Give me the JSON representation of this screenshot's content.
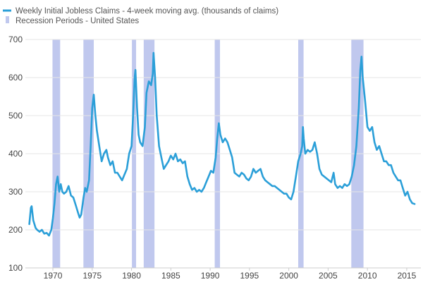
{
  "chart_data": {
    "type": "line",
    "title": "",
    "xlabel": "",
    "ylabel": "",
    "xlim": [
      1966.5,
      2016.8
    ],
    "ylim": [
      100,
      700
    ],
    "y_ticks": [
      100,
      200,
      300,
      400,
      500,
      600,
      700
    ],
    "x_ticks": [
      1970,
      1975,
      1980,
      1985,
      1990,
      1995,
      2000,
      2005,
      2010,
      2015
    ],
    "grid": "horizontal",
    "legend_position": "top-left",
    "series": [
      {
        "name": "Weekly Initial Jobless Claims - 4-week moving avg. (thousands of claims)",
        "color": "#2b9fd8",
        "points": [
          [
            1967.0,
            215
          ],
          [
            1967.2,
            258
          ],
          [
            1967.3,
            262
          ],
          [
            1967.5,
            225
          ],
          [
            1967.8,
            205
          ],
          [
            1968.0,
            200
          ],
          [
            1968.3,
            195
          ],
          [
            1968.6,
            200
          ],
          [
            1968.9,
            190
          ],
          [
            1969.2,
            192
          ],
          [
            1969.5,
            185
          ],
          [
            1969.8,
            200
          ],
          [
            1970.0,
            230
          ],
          [
            1970.2,
            270
          ],
          [
            1970.4,
            320
          ],
          [
            1970.6,
            340
          ],
          [
            1970.8,
            300
          ],
          [
            1971.0,
            320
          ],
          [
            1971.2,
            300
          ],
          [
            1971.4,
            295
          ],
          [
            1971.7,
            300
          ],
          [
            1972.0,
            315
          ],
          [
            1972.3,
            290
          ],
          [
            1972.6,
            285
          ],
          [
            1972.9,
            265
          ],
          [
            1973.2,
            245
          ],
          [
            1973.4,
            232
          ],
          [
            1973.6,
            240
          ],
          [
            1973.9,
            285
          ],
          [
            1974.1,
            310
          ],
          [
            1974.3,
            300
          ],
          [
            1974.6,
            330
          ],
          [
            1974.8,
            420
          ],
          [
            1975.0,
            520
          ],
          [
            1975.2,
            555
          ],
          [
            1975.4,
            500
          ],
          [
            1975.6,
            460
          ],
          [
            1975.9,
            420
          ],
          [
            1976.2,
            380
          ],
          [
            1976.5,
            400
          ],
          [
            1976.8,
            410
          ],
          [
            1977.0,
            390
          ],
          [
            1977.3,
            370
          ],
          [
            1977.6,
            380
          ],
          [
            1977.9,
            350
          ],
          [
            1978.2,
            350
          ],
          [
            1978.5,
            340
          ],
          [
            1978.8,
            330
          ],
          [
            1979.1,
            345
          ],
          [
            1979.4,
            360
          ],
          [
            1979.7,
            400
          ],
          [
            1980.0,
            420
          ],
          [
            1980.2,
            500
          ],
          [
            1980.4,
            600
          ],
          [
            1980.5,
            620
          ],
          [
            1980.7,
            520
          ],
          [
            1980.9,
            450
          ],
          [
            1981.1,
            430
          ],
          [
            1981.4,
            420
          ],
          [
            1981.7,
            470
          ],
          [
            1981.9,
            560
          ],
          [
            1982.2,
            590
          ],
          [
            1982.5,
            580
          ],
          [
            1982.7,
            610
          ],
          [
            1982.8,
            665
          ],
          [
            1983.0,
            600
          ],
          [
            1983.2,
            500
          ],
          [
            1983.5,
            420
          ],
          [
            1983.8,
            390
          ],
          [
            1984.1,
            360
          ],
          [
            1984.4,
            370
          ],
          [
            1984.7,
            380
          ],
          [
            1985.0,
            395
          ],
          [
            1985.3,
            385
          ],
          [
            1985.6,
            400
          ],
          [
            1985.9,
            380
          ],
          [
            1986.2,
            385
          ],
          [
            1986.5,
            375
          ],
          [
            1986.8,
            380
          ],
          [
            1987.1,
            340
          ],
          [
            1987.4,
            320
          ],
          [
            1987.7,
            305
          ],
          [
            1988.0,
            310
          ],
          [
            1988.3,
            300
          ],
          [
            1988.6,
            305
          ],
          [
            1988.9,
            300
          ],
          [
            1989.2,
            310
          ],
          [
            1989.5,
            325
          ],
          [
            1989.8,
            340
          ],
          [
            1990.1,
            355
          ],
          [
            1990.4,
            350
          ],
          [
            1990.7,
            390
          ],
          [
            1990.9,
            440
          ],
          [
            1991.1,
            480
          ],
          [
            1991.3,
            450
          ],
          [
            1991.6,
            430
          ],
          [
            1991.9,
            440
          ],
          [
            1992.2,
            430
          ],
          [
            1992.5,
            410
          ],
          [
            1992.8,
            390
          ],
          [
            1993.1,
            350
          ],
          [
            1993.4,
            345
          ],
          [
            1993.7,
            340
          ],
          [
            1994.0,
            350
          ],
          [
            1994.3,
            345
          ],
          [
            1994.6,
            335
          ],
          [
            1994.9,
            330
          ],
          [
            1995.2,
            340
          ],
          [
            1995.5,
            360
          ],
          [
            1995.8,
            350
          ],
          [
            1996.1,
            355
          ],
          [
            1996.4,
            360
          ],
          [
            1996.7,
            340
          ],
          [
            1997.0,
            330
          ],
          [
            1997.3,
            325
          ],
          [
            1997.6,
            320
          ],
          [
            1997.9,
            315
          ],
          [
            1998.2,
            315
          ],
          [
            1998.5,
            310
          ],
          [
            1998.8,
            305
          ],
          [
            1999.1,
            300
          ],
          [
            1999.4,
            295
          ],
          [
            1999.7,
            295
          ],
          [
            2000.0,
            285
          ],
          [
            2000.3,
            280
          ],
          [
            2000.6,
            300
          ],
          [
            2000.9,
            340
          ],
          [
            2001.2,
            380
          ],
          [
            2001.5,
            400
          ],
          [
            2001.7,
            420
          ],
          [
            2001.8,
            470
          ],
          [
            2001.9,
            440
          ],
          [
            2002.1,
            400
          ],
          [
            2002.4,
            410
          ],
          [
            2002.7,
            405
          ],
          [
            2003.0,
            410
          ],
          [
            2003.3,
            430
          ],
          [
            2003.6,
            400
          ],
          [
            2003.9,
            360
          ],
          [
            2004.2,
            345
          ],
          [
            2004.5,
            340
          ],
          [
            2004.8,
            335
          ],
          [
            2005.1,
            330
          ],
          [
            2005.4,
            325
          ],
          [
            2005.7,
            350
          ],
          [
            2005.9,
            320
          ],
          [
            2006.2,
            310
          ],
          [
            2006.5,
            315
          ],
          [
            2006.8,
            310
          ],
          [
            2007.1,
            320
          ],
          [
            2007.4,
            315
          ],
          [
            2007.7,
            320
          ],
          [
            2008.0,
            340
          ],
          [
            2008.3,
            370
          ],
          [
            2008.6,
            420
          ],
          [
            2008.9,
            520
          ],
          [
            2009.1,
            620
          ],
          [
            2009.25,
            655
          ],
          [
            2009.4,
            600
          ],
          [
            2009.7,
            540
          ],
          [
            2010.0,
            470
          ],
          [
            2010.3,
            460
          ],
          [
            2010.6,
            470
          ],
          [
            2010.9,
            430
          ],
          [
            2011.2,
            410
          ],
          [
            2011.5,
            420
          ],
          [
            2011.8,
            400
          ],
          [
            2012.1,
            380
          ],
          [
            2012.4,
            380
          ],
          [
            2012.7,
            370
          ],
          [
            2013.0,
            370
          ],
          [
            2013.3,
            350
          ],
          [
            2013.6,
            340
          ],
          [
            2013.9,
            330
          ],
          [
            2014.2,
            330
          ],
          [
            2014.5,
            310
          ],
          [
            2014.8,
            290
          ],
          [
            2015.1,
            300
          ],
          [
            2015.4,
            280
          ],
          [
            2015.7,
            270
          ],
          [
            2016.0,
            268
          ]
        ]
      }
    ],
    "recessions": {
      "name": "Recession Periods - United States",
      "color": "#c0c8ee",
      "periods": [
        [
          1969.95,
          1970.92
        ],
        [
          1973.88,
          1975.2
        ],
        [
          1980.05,
          1980.58
        ],
        [
          1981.55,
          1982.92
        ],
        [
          1990.58,
          1991.25
        ],
        [
          2001.2,
          2001.88
        ],
        [
          2007.95,
          2009.5
        ]
      ]
    }
  }
}
